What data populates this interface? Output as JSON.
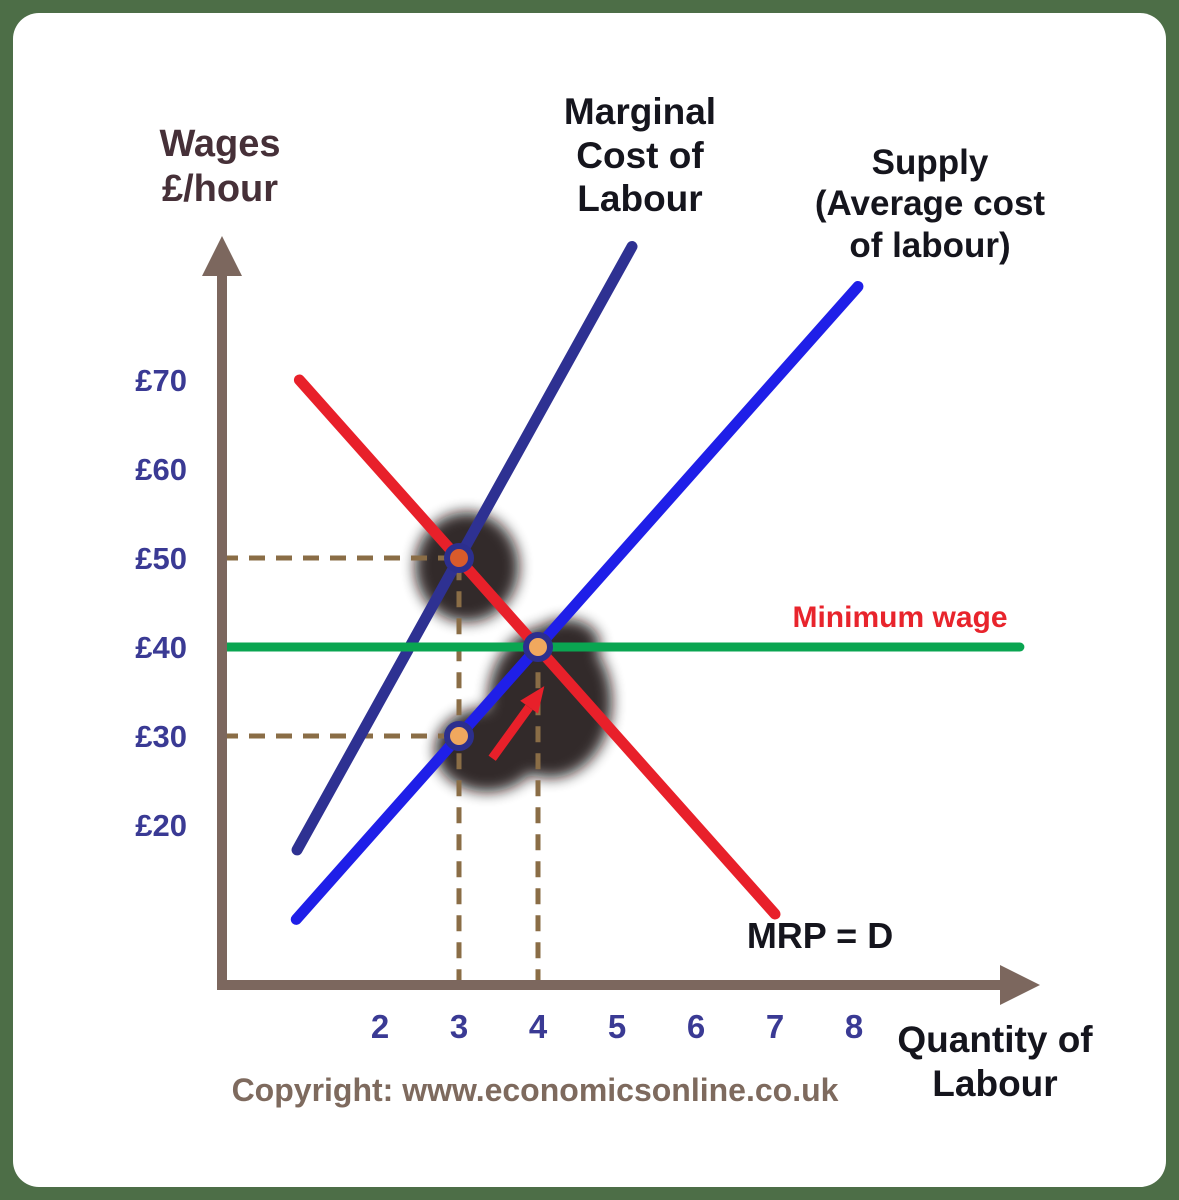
{
  "page": {
    "matte_color": "#4d6e47",
    "canvas_color": "#ffffff",
    "copyright": "Copyright: www.economicsonline.co.uk"
  },
  "chart_data": {
    "type": "line",
    "xlabel": "Quantity of\nLabour",
    "ylabel": "Wages\n£/hour",
    "xlim": [
      0,
      10.5
    ],
    "ylim": [
      0,
      90
    ],
    "grid": false,
    "legend": "inline-labels",
    "x_ticks": [
      2,
      3,
      4,
      5,
      6,
      7,
      8
    ],
    "y_ticks": [
      "£70",
      "£60",
      "£50",
      "£40",
      "£30",
      "£20"
    ],
    "y_tick_values": [
      70,
      60,
      50,
      40,
      30,
      20
    ],
    "tick_color": "#3a3a94",
    "axis_color": "#7c675e",
    "point_ring": "#2c2f8e",
    "series": [
      {
        "name": "Marginal\nCost of\nLabour",
        "color": "#2e3192",
        "width": 11,
        "points": [
          [
            0.95,
            17.2
          ],
          [
            5.19,
            85.0
          ]
        ]
      },
      {
        "name": "Supply\n(Average cost\nof labour)",
        "color": "#1f1fe8",
        "width": 11,
        "points": [
          [
            0.94,
            9.4
          ],
          [
            8.05,
            80.5
          ]
        ]
      },
      {
        "name": "MRP = D",
        "color": "#e8202a",
        "width": 11,
        "points": [
          [
            0.98,
            70.0
          ],
          [
            7.0,
            10.0
          ]
        ]
      },
      {
        "name": "Minimum wage",
        "color": "#0aa551",
        "width": 9,
        "points": [
          [
            0.0,
            40.0
          ],
          [
            10.1,
            40.0
          ]
        ]
      }
    ],
    "equilibria": [
      {
        "x": 3,
        "y": 50,
        "fill": "#d95b2b"
      },
      {
        "x": 4,
        "y": 40,
        "fill": "#f0a85e"
      },
      {
        "x": 3,
        "y": 30,
        "fill": "#f0a85e"
      }
    ],
    "guides": [
      {
        "points": [
          [
            0,
            50
          ],
          [
            3,
            50
          ]
        ],
        "color": "#8a6d46",
        "dash": "16 11",
        "width": 5
      },
      {
        "points": [
          [
            0,
            30
          ],
          [
            3,
            30
          ]
        ],
        "color": "#8a6d46",
        "dash": "16 11",
        "width": 5
      },
      {
        "points": [
          [
            3,
            2.0
          ],
          [
            3,
            50
          ]
        ],
        "color": "#8a6d46",
        "dash": "16 11",
        "width": 5
      },
      {
        "points": [
          [
            4,
            2.0
          ],
          [
            4,
            40
          ]
        ],
        "color": "#8a6d46",
        "dash": "16 11",
        "width": 5
      },
      {
        "points": [
          [
            0.15,
            40
          ],
          [
            3.9,
            40
          ]
        ],
        "color": "#0c7a3c",
        "dash": "26 16",
        "width": 7
      }
    ],
    "annotation_arrow": {
      "from": [
        3.42,
        27.5
      ],
      "to": [
        4.08,
        35.6
      ],
      "color": "#e8202a",
      "width": 9
    }
  }
}
